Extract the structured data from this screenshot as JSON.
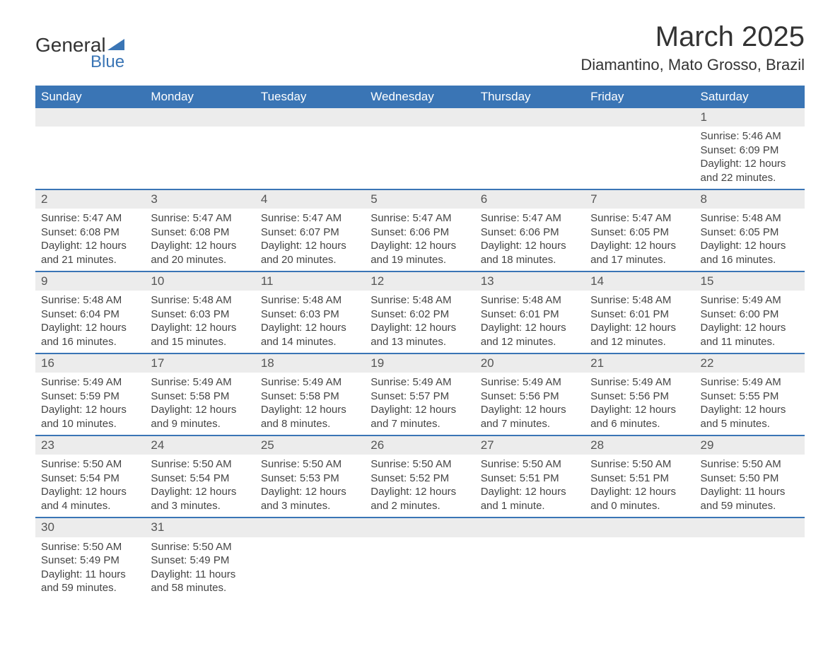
{
  "logo": {
    "word1": "General",
    "word2": "Blue"
  },
  "title": {
    "month": "March 2025",
    "location": "Diamantino, Mato Grosso, Brazil"
  },
  "colors": {
    "header_bg": "#3a75b5",
    "header_text": "#ffffff",
    "daynum_bg": "#ececec",
    "accent": "#3a75b5",
    "body_text": "#444444"
  },
  "weekdays": [
    "Sunday",
    "Monday",
    "Tuesday",
    "Wednesday",
    "Thursday",
    "Friday",
    "Saturday"
  ],
  "weeks": [
    [
      null,
      null,
      null,
      null,
      null,
      null,
      {
        "n": "1",
        "sr": "Sunrise: 5:46 AM",
        "ss": "Sunset: 6:09 PM",
        "dl": "Daylight: 12 hours and 22 minutes."
      }
    ],
    [
      {
        "n": "2",
        "sr": "Sunrise: 5:47 AM",
        "ss": "Sunset: 6:08 PM",
        "dl": "Daylight: 12 hours and 21 minutes."
      },
      {
        "n": "3",
        "sr": "Sunrise: 5:47 AM",
        "ss": "Sunset: 6:08 PM",
        "dl": "Daylight: 12 hours and 20 minutes."
      },
      {
        "n": "4",
        "sr": "Sunrise: 5:47 AM",
        "ss": "Sunset: 6:07 PM",
        "dl": "Daylight: 12 hours and 20 minutes."
      },
      {
        "n": "5",
        "sr": "Sunrise: 5:47 AM",
        "ss": "Sunset: 6:06 PM",
        "dl": "Daylight: 12 hours and 19 minutes."
      },
      {
        "n": "6",
        "sr": "Sunrise: 5:47 AM",
        "ss": "Sunset: 6:06 PM",
        "dl": "Daylight: 12 hours and 18 minutes."
      },
      {
        "n": "7",
        "sr": "Sunrise: 5:47 AM",
        "ss": "Sunset: 6:05 PM",
        "dl": "Daylight: 12 hours and 17 minutes."
      },
      {
        "n": "8",
        "sr": "Sunrise: 5:48 AM",
        "ss": "Sunset: 6:05 PM",
        "dl": "Daylight: 12 hours and 16 minutes."
      }
    ],
    [
      {
        "n": "9",
        "sr": "Sunrise: 5:48 AM",
        "ss": "Sunset: 6:04 PM",
        "dl": "Daylight: 12 hours and 16 minutes."
      },
      {
        "n": "10",
        "sr": "Sunrise: 5:48 AM",
        "ss": "Sunset: 6:03 PM",
        "dl": "Daylight: 12 hours and 15 minutes."
      },
      {
        "n": "11",
        "sr": "Sunrise: 5:48 AM",
        "ss": "Sunset: 6:03 PM",
        "dl": "Daylight: 12 hours and 14 minutes."
      },
      {
        "n": "12",
        "sr": "Sunrise: 5:48 AM",
        "ss": "Sunset: 6:02 PM",
        "dl": "Daylight: 12 hours and 13 minutes."
      },
      {
        "n": "13",
        "sr": "Sunrise: 5:48 AM",
        "ss": "Sunset: 6:01 PM",
        "dl": "Daylight: 12 hours and 12 minutes."
      },
      {
        "n": "14",
        "sr": "Sunrise: 5:48 AM",
        "ss": "Sunset: 6:01 PM",
        "dl": "Daylight: 12 hours and 12 minutes."
      },
      {
        "n": "15",
        "sr": "Sunrise: 5:49 AM",
        "ss": "Sunset: 6:00 PM",
        "dl": "Daylight: 12 hours and 11 minutes."
      }
    ],
    [
      {
        "n": "16",
        "sr": "Sunrise: 5:49 AM",
        "ss": "Sunset: 5:59 PM",
        "dl": "Daylight: 12 hours and 10 minutes."
      },
      {
        "n": "17",
        "sr": "Sunrise: 5:49 AM",
        "ss": "Sunset: 5:58 PM",
        "dl": "Daylight: 12 hours and 9 minutes."
      },
      {
        "n": "18",
        "sr": "Sunrise: 5:49 AM",
        "ss": "Sunset: 5:58 PM",
        "dl": "Daylight: 12 hours and 8 minutes."
      },
      {
        "n": "19",
        "sr": "Sunrise: 5:49 AM",
        "ss": "Sunset: 5:57 PM",
        "dl": "Daylight: 12 hours and 7 minutes."
      },
      {
        "n": "20",
        "sr": "Sunrise: 5:49 AM",
        "ss": "Sunset: 5:56 PM",
        "dl": "Daylight: 12 hours and 7 minutes."
      },
      {
        "n": "21",
        "sr": "Sunrise: 5:49 AM",
        "ss": "Sunset: 5:56 PM",
        "dl": "Daylight: 12 hours and 6 minutes."
      },
      {
        "n": "22",
        "sr": "Sunrise: 5:49 AM",
        "ss": "Sunset: 5:55 PM",
        "dl": "Daylight: 12 hours and 5 minutes."
      }
    ],
    [
      {
        "n": "23",
        "sr": "Sunrise: 5:50 AM",
        "ss": "Sunset: 5:54 PM",
        "dl": "Daylight: 12 hours and 4 minutes."
      },
      {
        "n": "24",
        "sr": "Sunrise: 5:50 AM",
        "ss": "Sunset: 5:54 PM",
        "dl": "Daylight: 12 hours and 3 minutes."
      },
      {
        "n": "25",
        "sr": "Sunrise: 5:50 AM",
        "ss": "Sunset: 5:53 PM",
        "dl": "Daylight: 12 hours and 3 minutes."
      },
      {
        "n": "26",
        "sr": "Sunrise: 5:50 AM",
        "ss": "Sunset: 5:52 PM",
        "dl": "Daylight: 12 hours and 2 minutes."
      },
      {
        "n": "27",
        "sr": "Sunrise: 5:50 AM",
        "ss": "Sunset: 5:51 PM",
        "dl": "Daylight: 12 hours and 1 minute."
      },
      {
        "n": "28",
        "sr": "Sunrise: 5:50 AM",
        "ss": "Sunset: 5:51 PM",
        "dl": "Daylight: 12 hours and 0 minutes."
      },
      {
        "n": "29",
        "sr": "Sunrise: 5:50 AM",
        "ss": "Sunset: 5:50 PM",
        "dl": "Daylight: 11 hours and 59 minutes."
      }
    ],
    [
      {
        "n": "30",
        "sr": "Sunrise: 5:50 AM",
        "ss": "Sunset: 5:49 PM",
        "dl": "Daylight: 11 hours and 59 minutes."
      },
      {
        "n": "31",
        "sr": "Sunrise: 5:50 AM",
        "ss": "Sunset: 5:49 PM",
        "dl": "Daylight: 11 hours and 58 minutes."
      },
      null,
      null,
      null,
      null,
      null
    ]
  ]
}
